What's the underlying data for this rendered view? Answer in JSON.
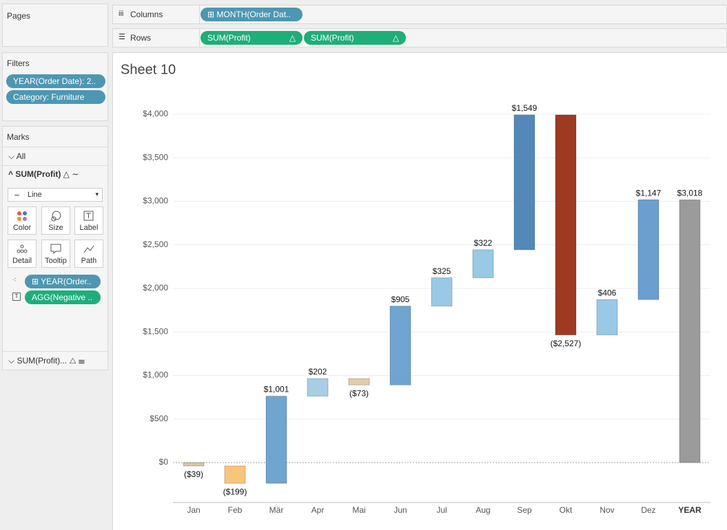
{
  "pages": {
    "title": "Pages"
  },
  "filters": {
    "title": "Filters",
    "pills": [
      "YEAR(Order Date): 2..",
      "Category: Furniture"
    ]
  },
  "marks": {
    "title": "Marks",
    "all": "All",
    "card": "SUM(Profit)",
    "mark_type": "Line",
    "buttons": [
      "Color",
      "Size",
      "Label",
      "Detail",
      "Tooltip",
      "Path"
    ],
    "pills": [
      "YEAR(Order..",
      "AGG(Negative .."
    ],
    "second_card": "SUM(Profit)..."
  },
  "shelves": {
    "columns_label": "Columns",
    "columns_pills": [
      "MONTH(Order Dat.."
    ],
    "rows_label": "Rows",
    "rows_pills": [
      "SUM(Profit)",
      "SUM(Profit)"
    ]
  },
  "chart_data": {
    "type": "waterfall",
    "title": "Sheet 10",
    "show_total": true,
    "categories": [
      "Jan",
      "Feb",
      "Mär",
      "Apr",
      "Mai",
      "Jun",
      "Jul",
      "Aug",
      "Sep",
      "Okt",
      "Nov",
      "Dez",
      "YEAR"
    ],
    "values": [
      -39,
      -199,
      1001,
      202,
      -73,
      905,
      325,
      322,
      1549,
      -2527,
      406,
      1147,
      3018
    ],
    "value_labels": [
      "($39)",
      "($199)",
      "$1,001",
      "$202",
      "($73)",
      "$905",
      "$325",
      "$322",
      "$1,549",
      "($2,527)",
      "$406",
      "$1,147",
      "$3,018"
    ],
    "colors": [
      "#d9c6a5",
      "#f9c57c",
      "#6fa5d0",
      "#a7cee3",
      "#e3ccaa",
      "#6fa5d0",
      "#99c9e6",
      "#99c9e6",
      "#5389b9",
      "#9e3a22",
      "#99c9e6",
      "#6a9fcf",
      "#9b9b9b"
    ],
    "ylim": [
      -458,
      4277
    ],
    "yticks": [
      {
        "value": 0,
        "label": "$0"
      },
      {
        "value": 500,
        "label": "$500"
      },
      {
        "value": 1000,
        "label": "$1,000"
      },
      {
        "value": 1500,
        "label": "$1,500"
      },
      {
        "value": 2000,
        "label": "$2,000"
      },
      {
        "value": 2500,
        "label": "$2,500"
      },
      {
        "value": 3000,
        "label": "$3,000"
      },
      {
        "value": 3500,
        "label": "$3,500"
      },
      {
        "value": 4000,
        "label": "$4,000"
      }
    ],
    "grid": true
  }
}
